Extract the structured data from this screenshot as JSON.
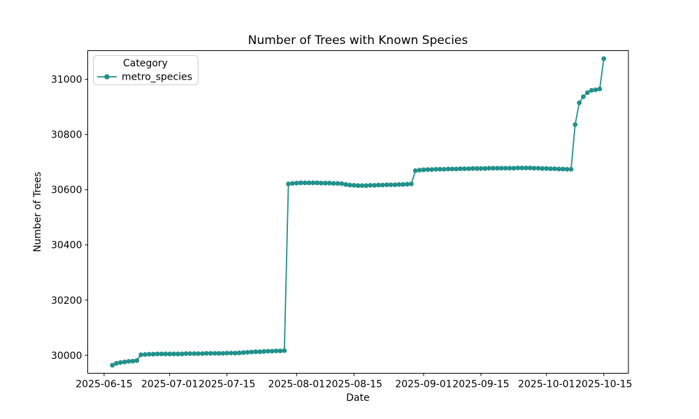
{
  "chart_data": {
    "type": "line",
    "title": "Number of Trees with Known Species",
    "xlabel": "Date",
    "ylabel": "Number of Trees",
    "grid": false,
    "legend": {
      "position": "upper left",
      "title": "Category",
      "entries": [
        {
          "label": "metro_species",
          "color": "#21918c",
          "marker": "circle"
        }
      ]
    },
    "line_color": "#21918c",
    "xlim": [
      "2025-06-11",
      "2025-10-21"
    ],
    "ylim": [
      29935,
      31104
    ],
    "x_ticks": [
      "2025-06-15",
      "2025-07-01",
      "2025-07-15",
      "2025-08-01",
      "2025-08-15",
      "2025-09-01",
      "2025-09-15",
      "2025-10-01",
      "2025-10-15"
    ],
    "y_ticks": [
      30000,
      30200,
      30400,
      30600,
      30800,
      31000
    ],
    "series": [
      {
        "name": "metro_species",
        "color": "#21918c",
        "points": [
          [
            "2025-06-17",
            29964
          ],
          [
            "2025-06-18",
            29971
          ],
          [
            "2025-06-19",
            29974
          ],
          [
            "2025-06-20",
            29976
          ],
          [
            "2025-06-21",
            29978
          ],
          [
            "2025-06-22",
            29979
          ],
          [
            "2025-06-23",
            29981
          ],
          [
            "2025-06-24",
            30002
          ],
          [
            "2025-06-25",
            30003
          ],
          [
            "2025-06-26",
            30004
          ],
          [
            "2025-06-27",
            30004
          ],
          [
            "2025-06-28",
            30005
          ],
          [
            "2025-06-29",
            30005
          ],
          [
            "2025-06-30",
            30005
          ],
          [
            "2025-07-01",
            30005
          ],
          [
            "2025-07-02",
            30005
          ],
          [
            "2025-07-03",
            30005
          ],
          [
            "2025-07-04",
            30005
          ],
          [
            "2025-07-05",
            30006
          ],
          [
            "2025-07-06",
            30006
          ],
          [
            "2025-07-07",
            30006
          ],
          [
            "2025-07-08",
            30006
          ],
          [
            "2025-07-09",
            30006
          ],
          [
            "2025-07-10",
            30007
          ],
          [
            "2025-07-11",
            30007
          ],
          [
            "2025-07-12",
            30007
          ],
          [
            "2025-07-13",
            30007
          ],
          [
            "2025-07-14",
            30007
          ],
          [
            "2025-07-15",
            30008
          ],
          [
            "2025-07-16",
            30008
          ],
          [
            "2025-07-17",
            30008
          ],
          [
            "2025-07-18",
            30009
          ],
          [
            "2025-07-19",
            30010
          ],
          [
            "2025-07-20",
            30011
          ],
          [
            "2025-07-21",
            30012
          ],
          [
            "2025-07-22",
            30013
          ],
          [
            "2025-07-23",
            30013
          ],
          [
            "2025-07-24",
            30014
          ],
          [
            "2025-07-25",
            30015
          ],
          [
            "2025-07-26",
            30015
          ],
          [
            "2025-07-27",
            30016
          ],
          [
            "2025-07-28",
            30016
          ],
          [
            "2025-07-29",
            30017
          ],
          [
            "2025-07-30",
            30621
          ],
          [
            "2025-07-31",
            30623
          ],
          [
            "2025-08-01",
            30624
          ],
          [
            "2025-08-02",
            30625
          ],
          [
            "2025-08-03",
            30625
          ],
          [
            "2025-08-04",
            30625
          ],
          [
            "2025-08-05",
            30625
          ],
          [
            "2025-08-06",
            30625
          ],
          [
            "2025-08-07",
            30624
          ],
          [
            "2025-08-08",
            30624
          ],
          [
            "2025-08-09",
            30624
          ],
          [
            "2025-08-10",
            30623
          ],
          [
            "2025-08-11",
            30623
          ],
          [
            "2025-08-12",
            30622
          ],
          [
            "2025-08-13",
            30619
          ],
          [
            "2025-08-14",
            30617
          ],
          [
            "2025-08-15",
            30616
          ],
          [
            "2025-08-16",
            30615
          ],
          [
            "2025-08-17",
            30615
          ],
          [
            "2025-08-18",
            30615
          ],
          [
            "2025-08-19",
            30616
          ],
          [
            "2025-08-20",
            30616
          ],
          [
            "2025-08-21",
            30617
          ],
          [
            "2025-08-22",
            30617
          ],
          [
            "2025-08-23",
            30618
          ],
          [
            "2025-08-24",
            30618
          ],
          [
            "2025-08-25",
            30618
          ],
          [
            "2025-08-26",
            30619
          ],
          [
            "2025-08-27",
            30619
          ],
          [
            "2025-08-28",
            30620
          ],
          [
            "2025-08-29",
            30621
          ],
          [
            "2025-08-30",
            30669
          ],
          [
            "2025-08-31",
            30671
          ],
          [
            "2025-09-01",
            30672
          ],
          [
            "2025-09-02",
            30673
          ],
          [
            "2025-09-03",
            30673
          ],
          [
            "2025-09-04",
            30674
          ],
          [
            "2025-09-05",
            30674
          ],
          [
            "2025-09-06",
            30674
          ],
          [
            "2025-09-07",
            30675
          ],
          [
            "2025-09-08",
            30675
          ],
          [
            "2025-09-09",
            30675
          ],
          [
            "2025-09-10",
            30676
          ],
          [
            "2025-09-11",
            30676
          ],
          [
            "2025-09-12",
            30676
          ],
          [
            "2025-09-13",
            30677
          ],
          [
            "2025-09-14",
            30677
          ],
          [
            "2025-09-15",
            30677
          ],
          [
            "2025-09-16",
            30677
          ],
          [
            "2025-09-17",
            30678
          ],
          [
            "2025-09-18",
            30678
          ],
          [
            "2025-09-19",
            30678
          ],
          [
            "2025-09-20",
            30678
          ],
          [
            "2025-09-21",
            30678
          ],
          [
            "2025-09-22",
            30678
          ],
          [
            "2025-09-23",
            30678
          ],
          [
            "2025-09-24",
            30679
          ],
          [
            "2025-09-25",
            30679
          ],
          [
            "2025-09-26",
            30679
          ],
          [
            "2025-09-27",
            30679
          ],
          [
            "2025-09-28",
            30678
          ],
          [
            "2025-09-29",
            30678
          ],
          [
            "2025-09-30",
            30677
          ],
          [
            "2025-10-01",
            30677
          ],
          [
            "2025-10-02",
            30676
          ],
          [
            "2025-10-03",
            30676
          ],
          [
            "2025-10-04",
            30675
          ],
          [
            "2025-10-05",
            30675
          ],
          [
            "2025-10-06",
            30674
          ],
          [
            "2025-10-07",
            30674
          ],
          [
            "2025-10-08",
            30836
          ],
          [
            "2025-10-09",
            30915
          ],
          [
            "2025-10-10",
            30937
          ],
          [
            "2025-10-11",
            30952
          ],
          [
            "2025-10-12",
            30960
          ],
          [
            "2025-10-13",
            30962
          ],
          [
            "2025-10-14",
            30965
          ],
          [
            "2025-10-15",
            31075
          ]
        ]
      }
    ]
  }
}
